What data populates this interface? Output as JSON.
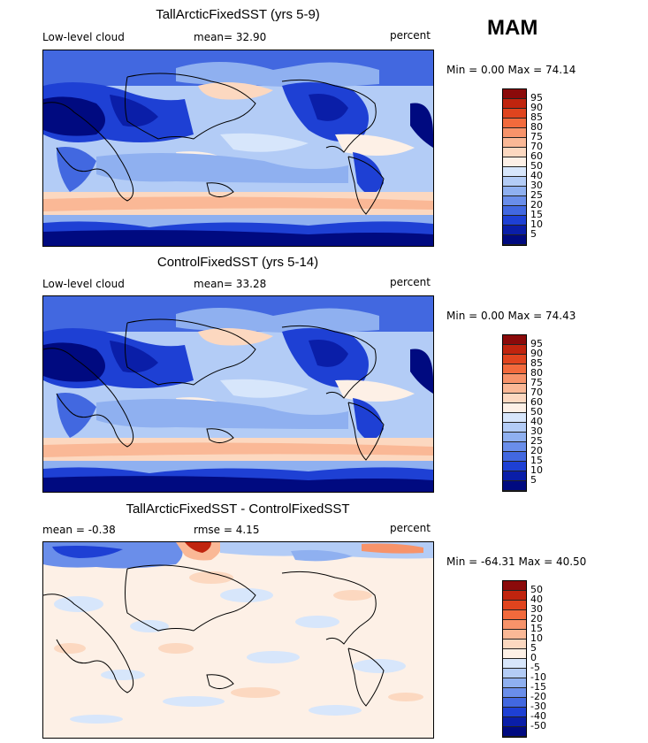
{
  "season": "MAM",
  "panels": [
    {
      "title": "TallArcticFixedSST (yrs 5-9)",
      "left_label": "Low-level cloud",
      "mid_label": "mean=  32.90",
      "right_label": "percent",
      "minmax": "Min =   0.00 Max =  74.14",
      "kind": "absolute"
    },
    {
      "title": "ControlFixedSST (yrs 5-14)",
      "left_label": "Low-level cloud",
      "mid_label": "mean=  33.28",
      "right_label": "percent",
      "minmax": "Min =   0.00 Max =  74.43",
      "kind": "absolute"
    },
    {
      "title": "TallArcticFixedSST - ControlFixedSST",
      "left_label": "mean =  -0.38",
      "mid_label": "rmse =   4.15",
      "right_label": "percent",
      "minmax": "Min = -64.31 Max =  40.50",
      "kind": "difference"
    }
  ],
  "colorbars": {
    "absolute": {
      "labels": [
        "95",
        "90",
        "85",
        "80",
        "75",
        "70",
        "60",
        "50",
        "40",
        "30",
        "25",
        "20",
        "15",
        "10",
        "5"
      ],
      "colors": [
        "#8b0a0a",
        "#c0240e",
        "#e0441e",
        "#f26a3c",
        "#f7936a",
        "#fab896",
        "#fcd8c0",
        "#fdf0e6",
        "#d7e6fb",
        "#b3ccf6",
        "#8fb0f0",
        "#6a8eea",
        "#4268e0",
        "#1e40d4",
        "#0a1ea8",
        "#000a80"
      ]
    },
    "difference": {
      "labels": [
        "50",
        "40",
        "30",
        "20",
        "15",
        "10",
        "5",
        "0",
        "-5",
        "-10",
        "-15",
        "-20",
        "-30",
        "-40",
        "-50"
      ],
      "colors": [
        "#8b0a0a",
        "#c0240e",
        "#e0441e",
        "#f26a3c",
        "#f7936a",
        "#fab896",
        "#fcd8c0",
        "#fdf0e6",
        "#d7e6fb",
        "#b3ccf6",
        "#8fb0f0",
        "#6a8eea",
        "#4268e0",
        "#1e40d4",
        "#0a1ea8",
        "#000a80"
      ]
    }
  }
}
